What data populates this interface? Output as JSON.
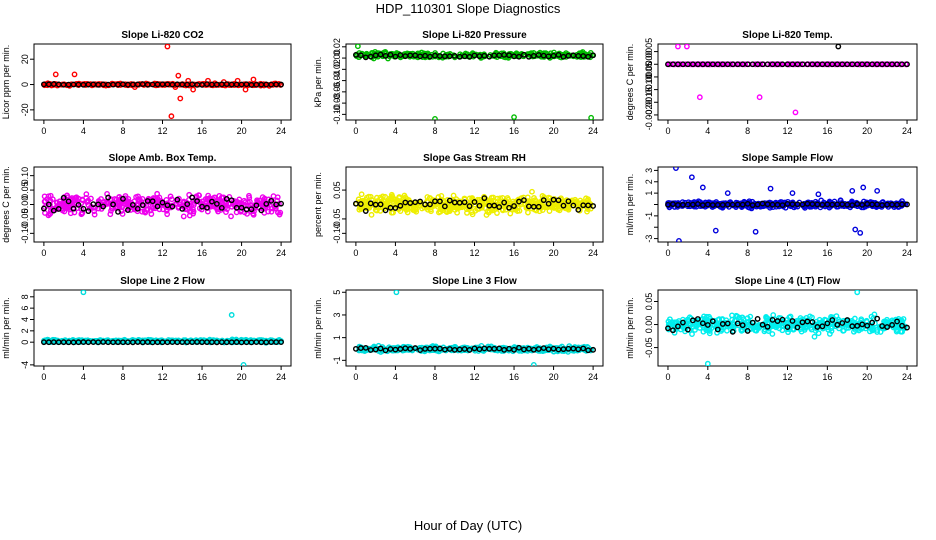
{
  "figure": {
    "title": "HDP_110301  Slope Diagnostics",
    "xlabel": "Hour of Day (UTC)"
  },
  "chart_data": [
    {
      "type": "scatter",
      "title": "Slope Li-820 CO2",
      "ylabel": "Licor ppm per min.",
      "xlim": [
        -1,
        25
      ],
      "ylim": [
        -28,
        32
      ],
      "xticks": [
        0,
        4,
        8,
        12,
        16,
        20,
        24
      ],
      "xtick_labels": [
        "0",
        "4",
        "8",
        "12",
        "16",
        "20",
        "24"
      ],
      "yticks": [
        -20,
        0,
        20
      ],
      "ytick_labels": [
        "-20",
        "0",
        "20"
      ],
      "series": [
        {
          "name": "all",
          "color": "#ff0000",
          "x": [
            0.1,
            0.4,
            0.7,
            1.2,
            2.6,
            3.1,
            6.3,
            9.2,
            12.5,
            12.9,
            13.3,
            13.6,
            13.8,
            14.6,
            15.1,
            16.6,
            17.3,
            18.2,
            19.6,
            20.4,
            21.2,
            22.8,
            23.6
          ],
          "y": [
            0,
            1,
            0,
            8,
            -1,
            8,
            0,
            -2,
            30,
            -25,
            -2,
            7,
            -11,
            3,
            -4,
            3,
            1,
            2,
            3,
            -4,
            4,
            -1,
            0
          ],
          "dense": true,
          "x_from": 0,
          "x_to": 24,
          "y_center": 0,
          "y_spread": 1.2,
          "n": 260
        },
        {
          "name": "hourly",
          "color": "#000000",
          "x_from": 0,
          "x_to": 24,
          "y_center": 0,
          "y_spread": 0.5,
          "n": 49
        }
      ]
    },
    {
      "type": "scatter",
      "title": "Slope Li-820 Pressure",
      "ylabel": "kPa per min.",
      "xlim": [
        -1,
        25
      ],
      "ylim": [
        -0.11,
        0.025
      ],
      "xticks": [
        0,
        4,
        8,
        12,
        16,
        20,
        24
      ],
      "xtick_labels": [
        "0",
        "4",
        "8",
        "12",
        "16",
        "20",
        "24"
      ],
      "yticks": [
        -0.1,
        -0.08,
        -0.06,
        -0.04,
        -0.02,
        0.0,
        0.02
      ],
      "ytick_labels": [
        "-0.10",
        "-0.08",
        "-0.06",
        "-0.04",
        "-0.02",
        "0.00",
        "0.02"
      ],
      "series": [
        {
          "name": "all",
          "color": "#00bb00",
          "x": [
            0.2,
            8.0,
            16.0,
            23.8
          ],
          "y": [
            0.021,
            -0.108,
            -0.105,
            -0.106
          ],
          "dense": true,
          "x_from": 0,
          "x_to": 24,
          "y_center": 0.005,
          "y_spread": 0.008,
          "n": 320
        },
        {
          "name": "hourly",
          "color": "#000000",
          "x_from": 0,
          "x_to": 24,
          "y_center": 0.004,
          "y_spread": 0.004,
          "n": 49
        }
      ]
    },
    {
      "type": "scatter",
      "title": "Slope Li-820 Temp.",
      "ylabel": "degrees C per min.",
      "xlim": [
        -1,
        25
      ],
      "ylim": [
        -0.0022,
        0.0008
      ],
      "xticks": [
        0,
        4,
        8,
        12,
        16,
        20,
        24
      ],
      "xtick_labels": [
        "0",
        "4",
        "8",
        "12",
        "16",
        "20",
        "24"
      ],
      "yticks": [
        -0.002,
        -0.0015,
        -0.001,
        -0.0005,
        0.0,
        0.0005
      ],
      "ytick_labels": [
        "-0.0020",
        "-0.0015",
        "-0.0010",
        "-0.0005",
        "0.0000",
        "0.0005"
      ],
      "series": [
        {
          "name": "all",
          "color": "#ff00ff",
          "x": [
            1.0,
            1.9,
            3.2,
            9.2,
            12.8
          ],
          "y": [
            0.0007,
            0.0007,
            -0.0013,
            -0.0013,
            -0.0019
          ],
          "dense": true,
          "x_from": 0,
          "x_to": 24,
          "y_center": 0,
          "y_spread": 0,
          "n": 200
        },
        {
          "name": "hourly",
          "color": "#000000",
          "x": [
            17.1
          ],
          "y": [
            0.0007
          ],
          "x_from": 0,
          "x_to": 24,
          "y_center": 0,
          "y_spread": 0,
          "n": 49
        }
      ]
    },
    {
      "type": "scatter",
      "title": "Slope Amb. Box Temp.",
      "ylabel": "degrees C per min.",
      "xlim": [
        -1,
        25
      ],
      "ylim": [
        -0.13,
        0.13
      ],
      "xticks": [
        0,
        4,
        8,
        12,
        16,
        20,
        24
      ],
      "xtick_labels": [
        "0",
        "4",
        "8",
        "12",
        "16",
        "20",
        "24"
      ],
      "yticks": [
        -0.1,
        -0.05,
        0.0,
        0.05,
        0.1
      ],
      "ytick_labels": [
        "-0.10",
        "-0.05",
        "0.00",
        "0.05",
        "0.10"
      ],
      "series": [
        {
          "name": "all",
          "color": "#ee00ee",
          "dense": true,
          "x_from": 0,
          "x_to": 24,
          "y_center": 0,
          "y_spread": 0.055,
          "n": 420
        },
        {
          "name": "hourly",
          "color": "#000000",
          "x_from": 0,
          "x_to": 24,
          "y_center": 0,
          "y_spread": 0.04,
          "n": 49
        }
      ]
    },
    {
      "type": "scatter",
      "title": "Slope Gas Stream RH",
      "ylabel": "percent per min.",
      "xlim": [
        -1,
        25
      ],
      "ylim": [
        -0.13,
        0.13
      ],
      "xticks": [
        0,
        4,
        8,
        12,
        16,
        20,
        24
      ],
      "xtick_labels": [
        "0",
        "4",
        "8",
        "12",
        "16",
        "20",
        "24"
      ],
      "yticks": [
        -0.1,
        -0.05,
        0.05
      ],
      "ytick_labels": [
        "-0.10",
        "-0.05",
        "0.05"
      ],
      "series": [
        {
          "name": "all",
          "color": "#eeee00",
          "dense": true,
          "x_from": 0,
          "x_to": 24,
          "y_center": 0,
          "y_spread": 0.05,
          "n": 480
        },
        {
          "name": "hourly",
          "color": "#000000",
          "x_from": 0,
          "x_to": 24,
          "y_center": 0,
          "y_spread": 0.04,
          "n": 49
        }
      ]
    },
    {
      "type": "scatter",
      "title": "Slope Sample Flow",
      "ylabel": "ml/min per min.",
      "xlim": [
        -1,
        25
      ],
      "ylim": [
        -3.3,
        3.3
      ],
      "xticks": [
        0,
        4,
        8,
        12,
        16,
        20,
        24
      ],
      "xtick_labels": [
        "0",
        "4",
        "8",
        "12",
        "16",
        "20",
        "24"
      ],
      "yticks": [
        -3,
        -2,
        -1,
        0,
        1,
        2,
        3
      ],
      "ytick_labels": [
        "-3",
        "-1",
        "1",
        "2",
        "3"
      ],
      "ytick_label_values": [
        -3,
        -1,
        1,
        2,
        3
      ],
      "series": [
        {
          "name": "all",
          "color": "#0000dd",
          "x": [
            0.8,
            1.1,
            2.4,
            3.5,
            4.8,
            6.0,
            8.8,
            10.3,
            12.5,
            15.1,
            18.5,
            18.8,
            19.3,
            19.6,
            21.0
          ],
          "y": [
            3.2,
            -3.2,
            2.4,
            1.5,
            -2.3,
            1.0,
            -2.4,
            1.4,
            1.0,
            0.9,
            1.2,
            -2.2,
            -2.5,
            1.5,
            1.2
          ],
          "dense": true,
          "x_from": 0,
          "x_to": 24,
          "y_center": 0,
          "y_spread": 0.45,
          "n": 420
        },
        {
          "name": "hourly",
          "color": "#000000",
          "x_from": 0,
          "x_to": 24,
          "y_center": 0,
          "y_spread": 0.12,
          "n": 49
        }
      ]
    },
    {
      "type": "scatter",
      "title": "Slope Line 2 Flow",
      "ylabel": "ml/min per min.",
      "xlim": [
        -1,
        25
      ],
      "ylim": [
        -4.2,
        9.2
      ],
      "xticks": [
        0,
        4,
        8,
        12,
        16,
        20,
        24
      ],
      "xtick_labels": [
        "0",
        "4",
        "8",
        "12",
        "16",
        "20",
        "24"
      ],
      "yticks": [
        -4,
        0,
        2,
        4,
        6,
        8
      ],
      "ytick_labels": [
        "-4",
        "0",
        "2",
        "4",
        "6",
        "8"
      ],
      "series": [
        {
          "name": "all",
          "color": "#00dddd",
          "x": [
            4.0,
            19.0,
            20.2
          ],
          "y": [
            8.8,
            4.8,
            -4.0
          ],
          "dense": true,
          "x_from": 0,
          "x_to": 24,
          "y_center": 0.2,
          "y_spread": 0.35,
          "n": 380
        },
        {
          "name": "hourly",
          "color": "#000000",
          "x_from": 0,
          "x_to": 24,
          "y_center": 0,
          "y_spread": 0.05,
          "n": 49
        }
      ]
    },
    {
      "type": "scatter",
      "title": "Slope Line 3 Flow",
      "ylabel": "ml/min per min.",
      "xlim": [
        -1,
        25
      ],
      "ylim": [
        -1.5,
        5.2
      ],
      "xticks": [
        0,
        4,
        8,
        12,
        16,
        20,
        24
      ],
      "xtick_labels": [
        "0",
        "4",
        "8",
        "12",
        "16",
        "20",
        "24"
      ],
      "yticks": [
        -1,
        1,
        3,
        5
      ],
      "ytick_labels": [
        "-1",
        "1",
        "3",
        "5"
      ],
      "series": [
        {
          "name": "all",
          "color": "#00dddd",
          "x": [
            4.1,
            18.0
          ],
          "y": [
            5.0,
            -1.4
          ],
          "dense": true,
          "x_from": 0,
          "x_to": 24,
          "y_center": 0,
          "y_spread": 0.35,
          "n": 420
        },
        {
          "name": "hourly",
          "color": "#000000",
          "x_from": 0,
          "x_to": 24,
          "y_center": 0,
          "y_spread": 0.22,
          "n": 49
        }
      ]
    },
    {
      "type": "scatter",
      "title": "Slope Line 4 (LT) Flow",
      "ylabel": "ml/min per min.",
      "xlim": [
        -1,
        25
      ],
      "ylim": [
        -0.09,
        0.075
      ],
      "xticks": [
        0,
        4,
        8,
        12,
        16,
        20,
        24
      ],
      "xtick_labels": [
        "0",
        "4",
        "8",
        "12",
        "16",
        "20",
        "24"
      ],
      "yticks": [
        -0.05,
        0.0,
        0.05
      ],
      "ytick_labels": [
        "-0.05",
        "0.00",
        "0.05"
      ],
      "series": [
        {
          "name": "all",
          "color": "#00eeee",
          "x": [
            4.0,
            19.0
          ],
          "y": [
            -0.085,
            0.07
          ],
          "dense": true,
          "x_from": 0,
          "x_to": 24,
          "y_center": 0,
          "y_spread": 0.03,
          "n": 460
        },
        {
          "name": "hourly",
          "color": "#000000",
          "x_from": 0,
          "x_to": 24,
          "y_center": 0,
          "y_spread": 0.025,
          "n": 49
        }
      ]
    }
  ]
}
